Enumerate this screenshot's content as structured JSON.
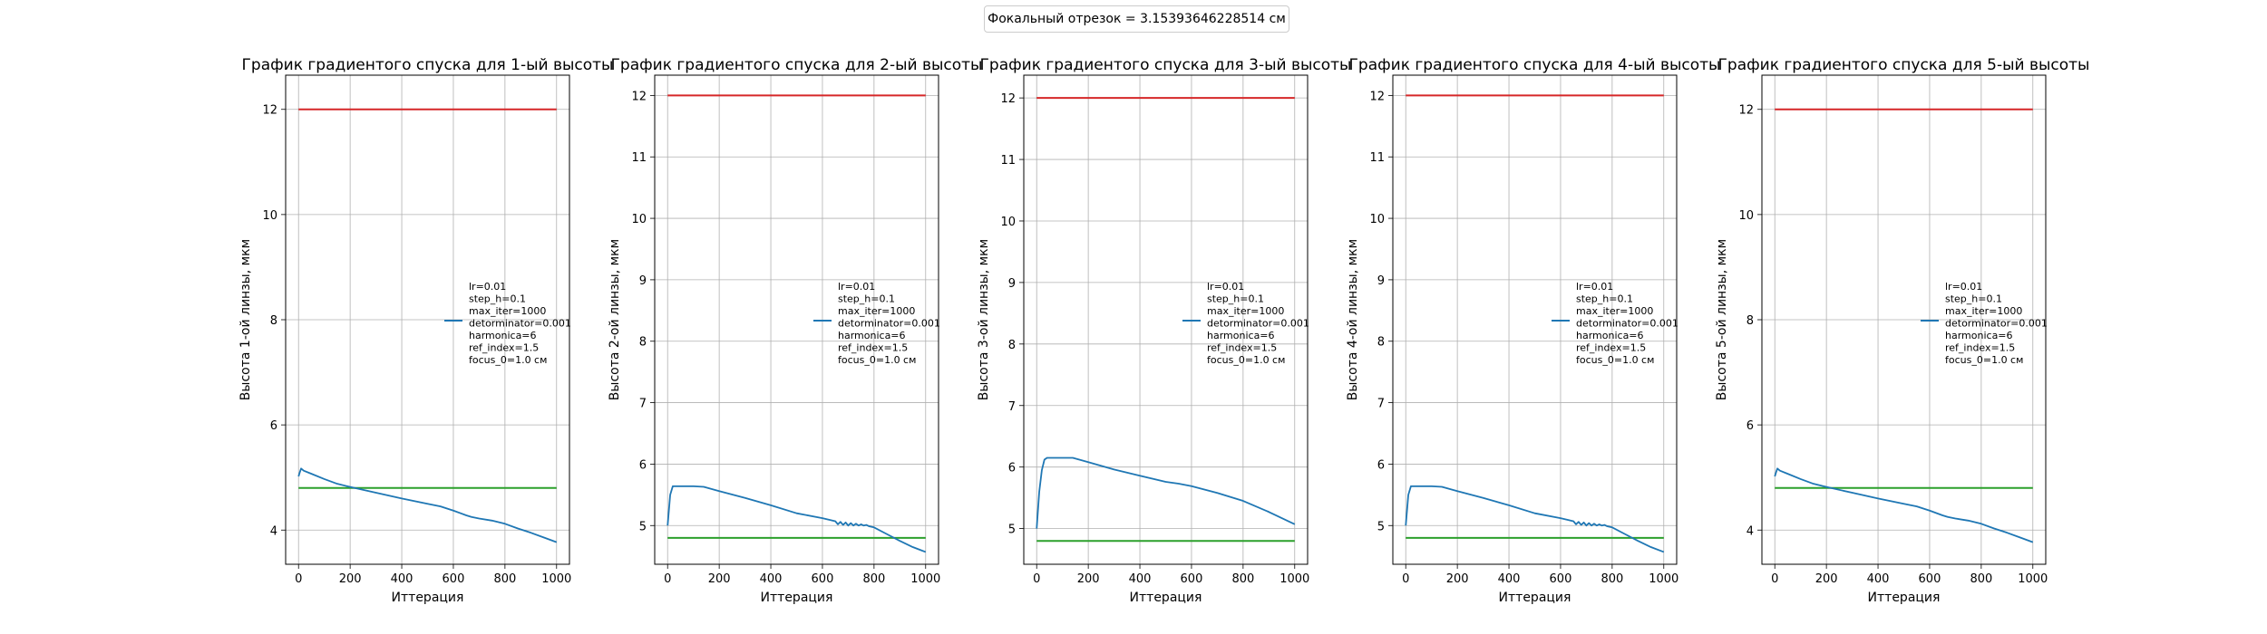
{
  "figure": {
    "suptitle": "Фокальный отрезок = 3.15393646228514 см",
    "colors": {
      "descent": "#1f77b4",
      "upper": "#d62728",
      "lower": "#2ca02c"
    }
  },
  "chart_data": [
    {
      "type": "line",
      "title": "График градиентого спуска для 1-ый высоты",
      "xlabel": "Иттерация",
      "ylabel": "Высота 1-ой линзы, мкм",
      "xlim": [
        -50,
        1050
      ],
      "ylim": [
        3.35,
        12.65
      ],
      "xticks": [
        0,
        200,
        400,
        600,
        800,
        1000
      ],
      "yticks": [
        4,
        6,
        8,
        10,
        12
      ],
      "grid": true,
      "legend_position": "center-right",
      "legend_text": [
        "lr=0.01",
        "step_h=0.1",
        "max_iter=1000",
        "detorminator=0.001",
        "harmonica=6",
        "ref_index=1.5",
        "focus_0=1.0 см"
      ],
      "series": [
        {
          "x": [
            0,
            5,
            10,
            20,
            50,
            100,
            150,
            200,
            300,
            400,
            500,
            550,
            600,
            650,
            670,
            700,
            750,
            800,
            850,
            900,
            950,
            1000
          ],
          "y": [
            5.02,
            5.1,
            5.17,
            5.13,
            5.07,
            4.97,
            4.88,
            4.82,
            4.71,
            4.6,
            4.5,
            4.45,
            4.37,
            4.28,
            4.25,
            4.22,
            4.18,
            4.12,
            4.03,
            3.95,
            3.86,
            3.77
          ]
        }
      ],
      "hlines": [
        {
          "y": 12.0,
          "xmin": 0,
          "xmax": 1000,
          "color": "#d62728"
        },
        {
          "y": 4.8,
          "xmin": 0,
          "xmax": 1000,
          "color": "#2ca02c"
        }
      ]
    },
    {
      "type": "line",
      "title": "График градиентого спуска для 2-ый высоты",
      "xlabel": "Иттерация",
      "ylabel": "Высота 2-ой линзы, мкм",
      "xlim": [
        -50,
        1050
      ],
      "ylim": [
        4.37,
        12.33
      ],
      "xticks": [
        0,
        200,
        400,
        600,
        800,
        1000
      ],
      "yticks": [
        5,
        6,
        7,
        8,
        9,
        10,
        11,
        12
      ],
      "grid": true,
      "legend_position": "center-right",
      "legend_text": [
        "lr=0.01",
        "step_h=0.1",
        "max_iter=1000",
        "detorminator=0.001",
        "harmonica=6",
        "ref_index=1.5",
        "focus_0=1.0 см"
      ],
      "series": [
        {
          "x": [
            0,
            5,
            10,
            20,
            30,
            60,
            100,
            140,
            200,
            300,
            400,
            500,
            600,
            650,
            660,
            670,
            680,
            690,
            700,
            710,
            720,
            730,
            740,
            750,
            760,
            770,
            780,
            800,
            850,
            900,
            950,
            1000
          ],
          "y": [
            5.0,
            5.25,
            5.5,
            5.64,
            5.64,
            5.64,
            5.64,
            5.63,
            5.56,
            5.45,
            5.33,
            5.2,
            5.12,
            5.07,
            5.02,
            5.06,
            5.01,
            5.05,
            5.0,
            5.04,
            5.0,
            5.03,
            5.0,
            5.02,
            5.0,
            5.01,
            4.99,
            4.97,
            4.86,
            4.75,
            4.65,
            4.57
          ]
        }
      ],
      "hlines": [
        {
          "y": 12.0,
          "xmin": 0,
          "xmax": 1000,
          "color": "#d62728"
        },
        {
          "y": 4.8,
          "xmin": 0,
          "xmax": 1000,
          "color": "#2ca02c"
        }
      ]
    },
    {
      "type": "line",
      "title": "График градиентого спуска для 3-ый высоты",
      "xlabel": "Иттерация",
      "ylabel": "Высота 3-ой линзы, мкм",
      "xlim": [
        -50,
        1050
      ],
      "ylim": [
        4.42,
        12.37
      ],
      "xticks": [
        0,
        200,
        400,
        600,
        800,
        1000
      ],
      "yticks": [
        5,
        6,
        7,
        8,
        9,
        10,
        11,
        12
      ],
      "grid": true,
      "legend_position": "center-right",
      "legend_text": [
        "lr=0.01",
        "step_h=0.1",
        "max_iter=1000",
        "detorminator=0.001",
        "harmonica=6",
        "ref_index=1.5",
        "focus_0=1.0 см"
      ],
      "series": [
        {
          "x": [
            0,
            5,
            10,
            20,
            30,
            40,
            60,
            100,
            140,
            200,
            300,
            400,
            500,
            550,
            600,
            700,
            800,
            900,
            1000
          ],
          "y": [
            5.0,
            5.3,
            5.6,
            5.95,
            6.12,
            6.15,
            6.15,
            6.15,
            6.15,
            6.08,
            5.96,
            5.86,
            5.76,
            5.73,
            5.69,
            5.58,
            5.45,
            5.27,
            5.07
          ]
        }
      ],
      "hlines": [
        {
          "y": 12.0,
          "xmin": 0,
          "xmax": 1000,
          "color": "#d62728"
        },
        {
          "y": 4.8,
          "xmin": 0,
          "xmax": 1000,
          "color": "#2ca02c"
        }
      ]
    },
    {
      "type": "line",
      "title": "График градиентого спуска для 4-ый высоты",
      "xlabel": "Иттерация",
      "ylabel": "Высота 4-ой линзы, мкм",
      "xlim": [
        -50,
        1050
      ],
      "ylim": [
        4.37,
        12.33
      ],
      "xticks": [
        0,
        200,
        400,
        600,
        800,
        1000
      ],
      "yticks": [
        5,
        6,
        7,
        8,
        9,
        10,
        11,
        12
      ],
      "grid": true,
      "legend_position": "center-right",
      "legend_text": [
        "lr=0.01",
        "step_h=0.1",
        "max_iter=1000",
        "detorminator=0.001",
        "harmonica=6",
        "ref_index=1.5",
        "focus_0=1.0 см"
      ],
      "series": [
        {
          "x": [
            0,
            5,
            10,
            20,
            30,
            60,
            100,
            140,
            200,
            300,
            400,
            500,
            600,
            650,
            660,
            670,
            680,
            690,
            700,
            710,
            720,
            730,
            740,
            750,
            760,
            770,
            780,
            800,
            850,
            900,
            950,
            1000
          ],
          "y": [
            5.0,
            5.25,
            5.5,
            5.64,
            5.64,
            5.64,
            5.64,
            5.63,
            5.56,
            5.45,
            5.33,
            5.2,
            5.12,
            5.07,
            5.02,
            5.06,
            5.01,
            5.05,
            5.0,
            5.04,
            5.0,
            5.03,
            5.0,
            5.02,
            5.0,
            5.01,
            4.99,
            4.97,
            4.86,
            4.75,
            4.65,
            4.57
          ]
        }
      ],
      "hlines": [
        {
          "y": 12.0,
          "xmin": 0,
          "xmax": 1000,
          "color": "#d62728"
        },
        {
          "y": 4.8,
          "xmin": 0,
          "xmax": 1000,
          "color": "#2ca02c"
        }
      ]
    },
    {
      "type": "line",
      "title": "График градиентого спуска для 5-ый высоты",
      "xlabel": "Иттерация",
      "ylabel": "Высота 5-ой линзы, мкм",
      "xlim": [
        -50,
        1050
      ],
      "ylim": [
        3.35,
        12.65
      ],
      "xticks": [
        0,
        200,
        400,
        600,
        800,
        1000
      ],
      "yticks": [
        4,
        6,
        8,
        10,
        12
      ],
      "grid": true,
      "legend_position": "center-right",
      "legend_text": [
        "lr=0.01",
        "step_h=0.1",
        "max_iter=1000",
        "detorminator=0.001",
        "harmonica=6",
        "ref_index=1.5",
        "focus_0=1.0 см"
      ],
      "series": [
        {
          "x": [
            0,
            5,
            10,
            20,
            50,
            100,
            150,
            200,
            300,
            400,
            500,
            550,
            600,
            650,
            670,
            700,
            750,
            800,
            850,
            900,
            950,
            1000
          ],
          "y": [
            5.02,
            5.1,
            5.17,
            5.13,
            5.07,
            4.97,
            4.88,
            4.82,
            4.71,
            4.6,
            4.5,
            4.45,
            4.37,
            4.28,
            4.25,
            4.22,
            4.18,
            4.12,
            4.03,
            3.95,
            3.86,
            3.77
          ]
        }
      ],
      "hlines": [
        {
          "y": 12.0,
          "xmin": 0,
          "xmax": 1000,
          "color": "#d62728"
        },
        {
          "y": 4.8,
          "xmin": 0,
          "xmax": 1000,
          "color": "#2ca02c"
        }
      ]
    }
  ]
}
